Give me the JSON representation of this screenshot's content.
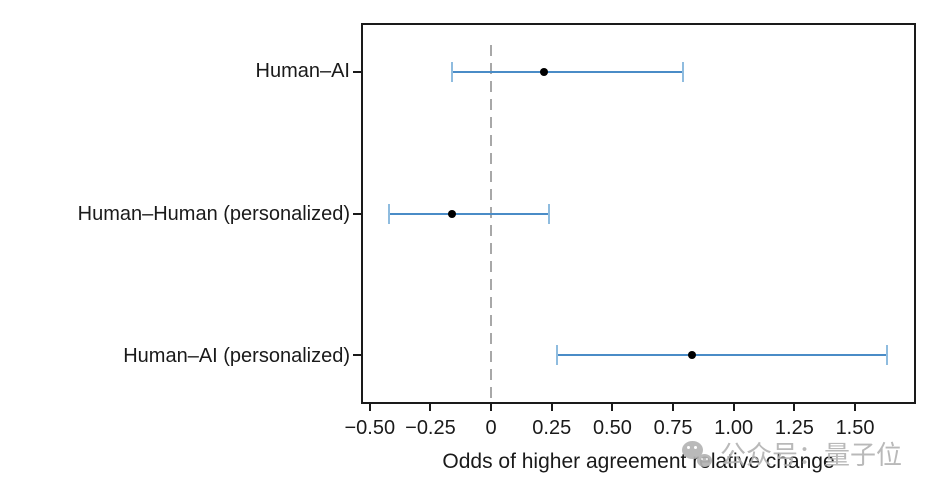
{
  "chart_data": {
    "type": "scatter",
    "subtype": "forest-plot-horizontal-errorbars",
    "title": "",
    "xlabel": "Odds of higher agreement relative change",
    "ylabel": "",
    "xlim": [
      -0.528,
      1.743
    ],
    "grid": false,
    "legend": "none",
    "reference_line_x": 0,
    "categories": [
      "Human–AI",
      "Human–Human (personalized)",
      "Human–AI (personalized)"
    ],
    "points": [
      {
        "label": "Human–AI",
        "estimate": 0.22,
        "ci_low": -0.16,
        "ci_high": 0.79
      },
      {
        "label": "Human–Human (personalized)",
        "estimate": -0.16,
        "ci_low": -0.42,
        "ci_high": 0.24
      },
      {
        "label": "Human–AI (personalized)",
        "estimate": 0.83,
        "ci_low": 0.27,
        "ci_high": 1.63
      }
    ],
    "x_ticks": [
      -0.5,
      -0.25,
      0,
      0.25,
      0.5,
      0.75,
      1.0,
      1.25,
      1.5
    ],
    "x_tick_labels": [
      "−0.50",
      "−0.25",
      "0",
      "0.25",
      "0.50",
      "0.75",
      "1.00",
      "1.25",
      "1.50"
    ],
    "colors": {
      "background": "#ffffff",
      "axis": "#1a1a1a",
      "text": "#1a1a1a",
      "errorbar_line": "#4a8cc7",
      "errorbar_cap": "#8fbcdf",
      "point": "#000000",
      "reference_line": "#a8a8a8"
    }
  },
  "watermark": {
    "icon": "wechat-icon",
    "text": "公众号：量子位",
    "color": "#b4b4b4"
  }
}
